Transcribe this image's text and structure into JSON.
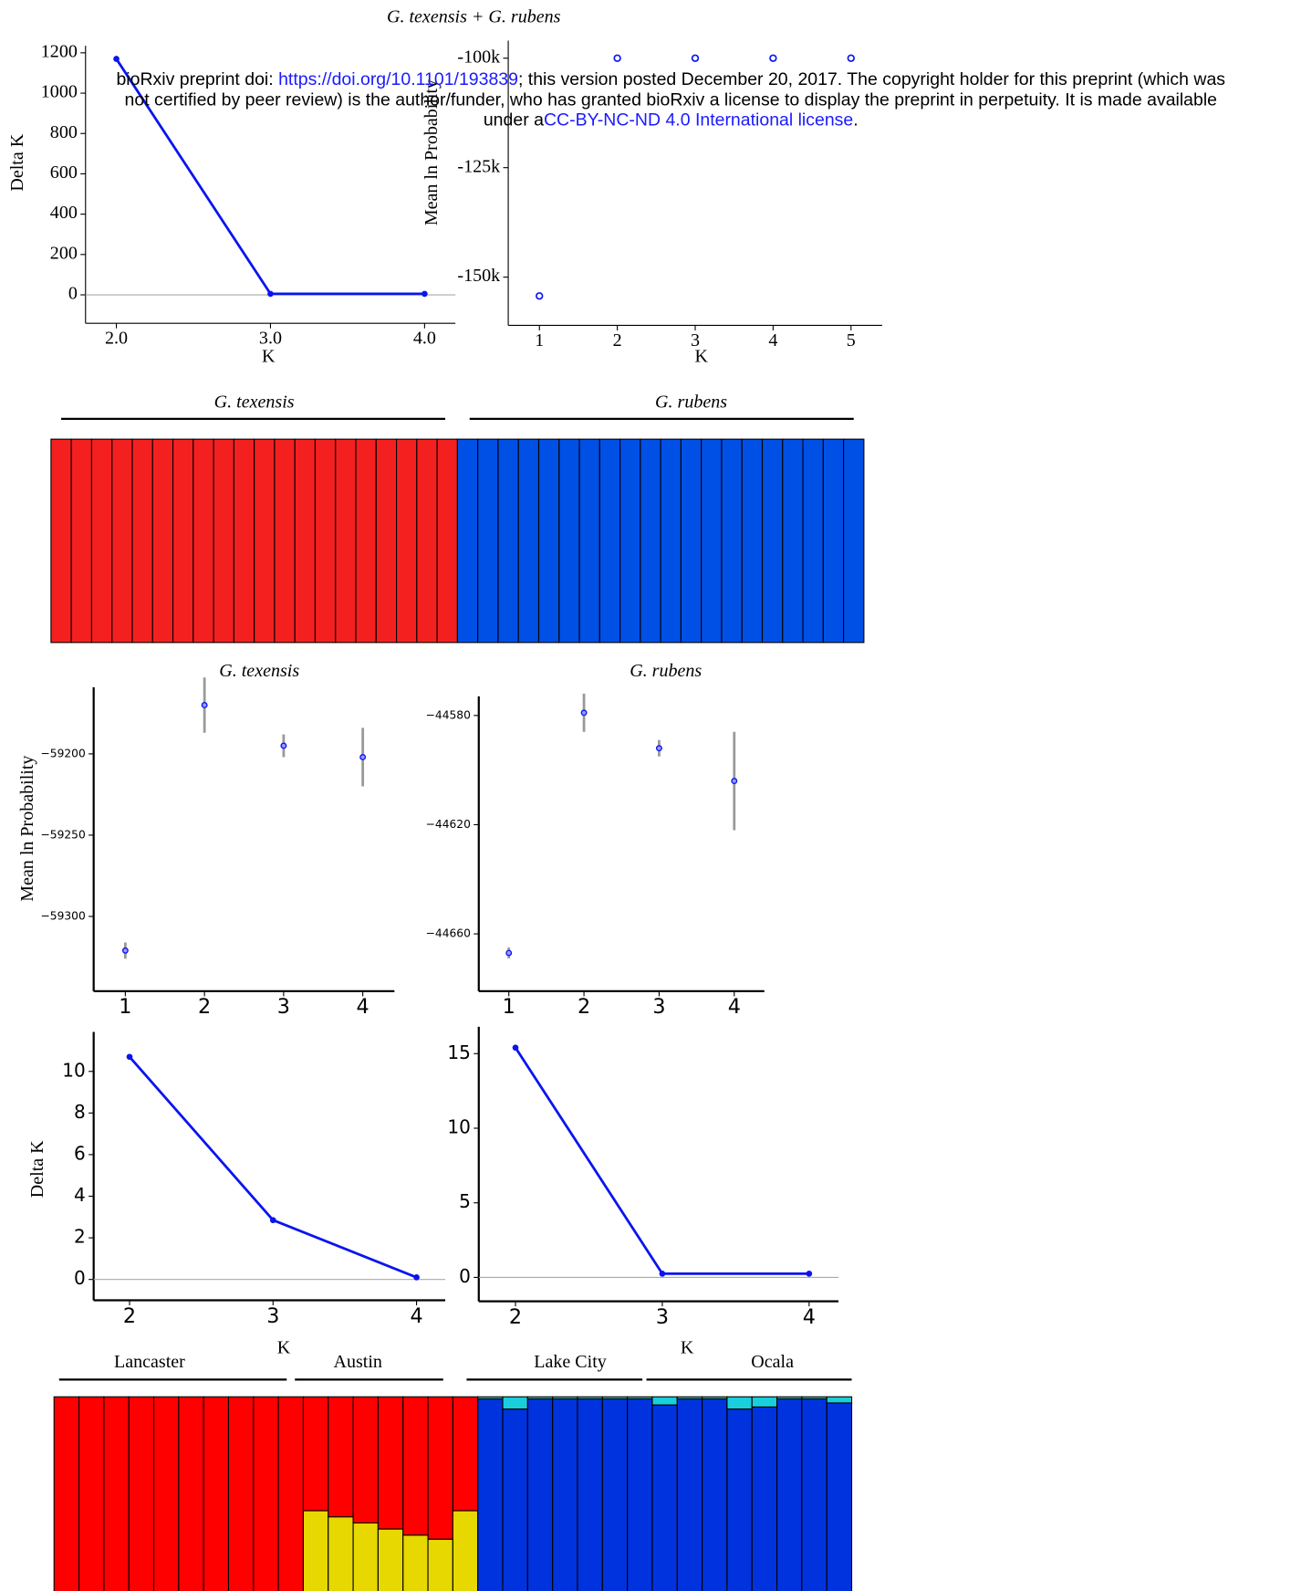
{
  "header": {
    "doi_prefix": "bioRxiv preprint doi: ",
    "doi": "https://doi.org/10.1101/193839",
    "doi_suffix": "; this version posted December 20, 2017. The copyright holder for this preprint (which was",
    "line2": "not certified by peer review) is the author/funder, who has granted bioRxiv a license to display the preprint in perpetuity. It is made available",
    "license_prefix": "under a",
    "license": "CC-BY-NC-ND 4.0 International license",
    "license_suffix": "."
  },
  "figure_title": "G. texensis + G. rubens",
  "chart_data": [
    {
      "type": "line",
      "x": [
        2,
        3,
        4
      ],
      "values": [
        1170,
        5,
        5
      ],
      "color": "#0a14f0",
      "xlim": [
        1.8,
        4.2
      ],
      "xticks": [
        {
          "value": 2,
          "label": "2.0"
        },
        {
          "value": 3,
          "label": "3.0"
        },
        {
          "value": 4,
          "label": "4.0"
        }
      ],
      "ylim": [
        -141,
        1235
      ],
      "yticks": [
        0,
        200,
        400,
        600,
        800,
        1000,
        1200
      ],
      "xlabel": "K",
      "ylabel": "Delta K",
      "zero_line": true
    },
    {
      "type": "scatter",
      "x": [
        1,
        2,
        3,
        4,
        5
      ],
      "values": [
        -154300,
        -100000,
        -100000,
        -100000,
        -100000
      ],
      "color": "#0a14f0",
      "xlim": [
        0.6,
        5.4
      ],
      "xticks": [
        1,
        2,
        3,
        4,
        5
      ],
      "ylim": [
        -161000,
        -96000
      ],
      "yticks": [
        {
          "value": -100000,
          "label": "-100k"
        },
        {
          "value": -125000,
          "label": "-125k"
        },
        {
          "value": -150000,
          "label": "-150k"
        }
      ],
      "xlabel": "K",
      "ylabel": "Mean ln Probability"
    },
    {
      "type": "stacked_bar",
      "categories": [
        null,
        null,
        null,
        null,
        null,
        null,
        null,
        null,
        null,
        null,
        null,
        null,
        null,
        null,
        null,
        null,
        null,
        null,
        null,
        null,
        null,
        null,
        null,
        null,
        null,
        null,
        null,
        null,
        null,
        null,
        null,
        null,
        null,
        null,
        null,
        null,
        null,
        null,
        null,
        null
      ],
      "series": [
        {
          "color": "#f42020",
          "values": [
            1,
            1,
            1,
            1,
            1,
            1,
            1,
            1,
            1,
            1,
            1,
            1,
            1,
            1,
            1,
            1,
            1,
            1,
            1,
            1,
            0,
            0,
            0,
            0,
            0,
            0,
            0,
            0,
            0,
            0,
            0,
            0,
            0,
            0,
            0,
            0,
            0,
            0,
            0,
            0
          ]
        },
        {
          "color": "#0050e6",
          "values": [
            0,
            0,
            0,
            0,
            0,
            0,
            0,
            0,
            0,
            0,
            0,
            0,
            0,
            0,
            0,
            0,
            0,
            0,
            0,
            0,
            1,
            1,
            1,
            1,
            1,
            1,
            1,
            1,
            1,
            1,
            1,
            1,
            1,
            1,
            1,
            1,
            1,
            1,
            1,
            1
          ]
        }
      ],
      "ylim": [
        0,
        1
      ],
      "group_labels": [
        "G. texensis",
        "G. rubens"
      ]
    },
    {
      "type": "errorbar",
      "title": "G. texensis",
      "x": [
        1,
        2,
        3,
        4
      ],
      "values": [
        -59321,
        -59170,
        -59195,
        -59202
      ],
      "errors": [
        5,
        17,
        7,
        18
      ],
      "color": "#0a14f0",
      "error_color": "#999999",
      "xlim": [
        0.6,
        4.4
      ],
      "xticks": [
        1,
        2,
        3,
        4
      ],
      "ylim": [
        -59346,
        -59159
      ],
      "yticks": [
        {
          "value": -59200,
          "label": "−59200"
        },
        {
          "value": -59250,
          "label": "−59250"
        },
        {
          "value": -59300,
          "label": "−59300"
        }
      ],
      "ylabel": "Mean ln Probability"
    },
    {
      "type": "errorbar",
      "title": "G. rubens",
      "x": [
        1,
        2,
        3,
        4
      ],
      "values": [
        -44667,
        -44579,
        -44592,
        -44604
      ],
      "errors": [
        2,
        7,
        3,
        18
      ],
      "color": "#0a14f0",
      "error_color": "#999999",
      "xlim": [
        0.6,
        4.4
      ],
      "xticks": [
        1,
        2,
        3,
        4
      ],
      "ylim": [
        -44681,
        -44573
      ],
      "yticks": [
        {
          "value": -44580,
          "label": "−44580"
        },
        {
          "value": -44620,
          "label": "−44620"
        },
        {
          "value": -44660,
          "label": "−44660"
        }
      ]
    },
    {
      "type": "line",
      "x": [
        2,
        3,
        4
      ],
      "values": [
        10.7,
        2.85,
        0.1
      ],
      "color": "#0a14f0",
      "xlim": [
        1.75,
        4.2
      ],
      "xticks": [
        2,
        3,
        4
      ],
      "ylim": [
        -1,
        11.9
      ],
      "yticks": [
        0,
        2,
        4,
        6,
        8,
        10
      ],
      "xlabel": "K",
      "ylabel": "Delta K",
      "zero_line": true
    },
    {
      "type": "line",
      "x": [
        2,
        3,
        4
      ],
      "values": [
        15.4,
        0.25,
        0.25
      ],
      "color": "#0a14f0",
      "xlim": [
        1.75,
        4.2
      ],
      "xticks": [
        2,
        3,
        4
      ],
      "ylim": [
        -1.6,
        16.8
      ],
      "yticks": [
        0,
        5,
        10,
        15
      ],
      "xlabel": "K",
      "zero_line": true
    },
    {
      "type": "stacked_bar",
      "categories": [
        null,
        null,
        null,
        null,
        null,
        null,
        null,
        null,
        null,
        null,
        null,
        null,
        null,
        null,
        null,
        null,
        null,
        null,
        null,
        null,
        null,
        null,
        null,
        null,
        null,
        null,
        null,
        null,
        null,
        null,
        null,
        null
      ],
      "series": [
        {
          "color": "#e6d800",
          "values": [
            0,
            0,
            0,
            0,
            0,
            0,
            0,
            0,
            0,
            0,
            0.44,
            0.41,
            0.38,
            0.35,
            0.32,
            0.3,
            0.44,
            0,
            0,
            0,
            0,
            0,
            0,
            0,
            0,
            0,
            0,
            0,
            0,
            0,
            0,
            0
          ]
        },
        {
          "color": "#ff0000",
          "values": [
            1,
            1,
            1,
            1,
            1,
            1,
            1,
            1,
            1,
            1,
            0.56,
            0.59,
            0.62,
            0.65,
            0.68,
            0.7,
            0.56,
            0,
            0,
            0,
            0,
            0,
            0,
            0,
            0,
            0,
            0,
            0,
            0,
            0,
            0,
            0
          ]
        },
        {
          "color": "#0033dd",
          "values": [
            0,
            0,
            0,
            0,
            0,
            0,
            0,
            0,
            0,
            0,
            0,
            0,
            0,
            0,
            0,
            0,
            0,
            0.99,
            0.94,
            0.99,
            0.99,
            0.99,
            0.99,
            0.99,
            0.96,
            0.99,
            0.99,
            0.94,
            0.95,
            0.99,
            0.99,
            0.97
          ]
        },
        {
          "color": "#19cfdc",
          "values": [
            0,
            0,
            0,
            0,
            0,
            0,
            0,
            0,
            0,
            0,
            0,
            0,
            0,
            0,
            0,
            0,
            0,
            0.01,
            0.06,
            0.01,
            0.01,
            0.01,
            0.01,
            0.01,
            0.04,
            0.01,
            0.01,
            0.06,
            0.05,
            0.01,
            0.01,
            0.03
          ]
        }
      ],
      "ylim": [
        0,
        1
      ],
      "group_labels": [
        "Lancaster",
        "Austin",
        "Lake City",
        "Ocala"
      ]
    }
  ]
}
